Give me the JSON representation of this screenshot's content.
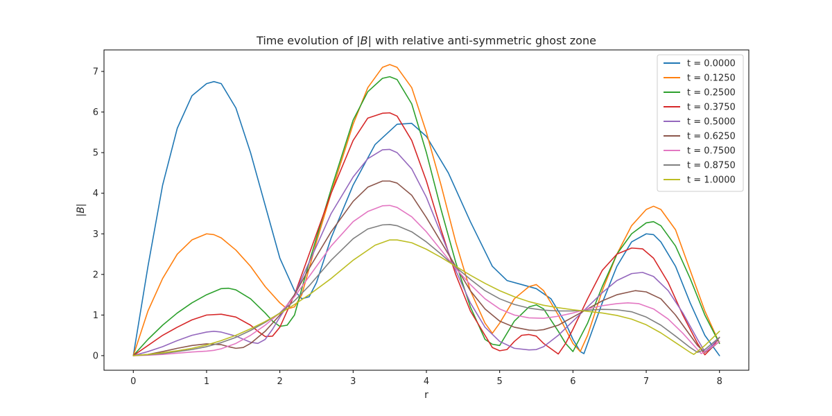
{
  "chart_data": {
    "type": "line",
    "title": "Time evolution of |B| with relative anti-symmetric ghost zone",
    "title_parts": [
      "Time evolution of |",
      "B",
      "| with relative anti-symmetric ghost zone"
    ],
    "xlabel": "r",
    "ylabel_parts": [
      "|",
      "B",
      "|"
    ],
    "xlim": [
      -0.4,
      8.4
    ],
    "ylim": [
      -0.36,
      7.53
    ],
    "x_ticks": [
      0,
      1,
      2,
      3,
      4,
      5,
      6,
      7,
      8
    ],
    "y_ticks": [
      0,
      1,
      2,
      3,
      4,
      5,
      6,
      7
    ],
    "grid": false,
    "legend_position": "top-right",
    "series": [
      {
        "name": "t = 0.0000",
        "color": "#1f77b4",
        "x": [
          0,
          0.2,
          0.4,
          0.6,
          0.8,
          1.0,
          1.1,
          1.2,
          1.4,
          1.6,
          1.8,
          2.0,
          2.2,
          2.3,
          2.4,
          2.5,
          2.7,
          3.0,
          3.3,
          3.6,
          3.8,
          4.0,
          4.3,
          4.6,
          4.9,
          5.1,
          5.3,
          5.5,
          5.7,
          5.9,
          6.0,
          6.1,
          6.15,
          6.2,
          6.4,
          6.6,
          6.8,
          7.0,
          7.1,
          7.2,
          7.4,
          7.6,
          7.8,
          8.0
        ],
        "y": [
          0,
          2.2,
          4.2,
          5.6,
          6.4,
          6.7,
          6.75,
          6.7,
          6.1,
          5.0,
          3.7,
          2.4,
          1.6,
          1.4,
          1.45,
          1.8,
          2.9,
          4.2,
          5.2,
          5.7,
          5.72,
          5.4,
          4.5,
          3.3,
          2.2,
          1.85,
          1.75,
          1.65,
          1.4,
          0.8,
          0.4,
          0.1,
          0.05,
          0.3,
          1.3,
          2.2,
          2.8,
          3.0,
          2.98,
          2.8,
          2.2,
          1.3,
          0.5,
          0
        ]
      },
      {
        "name": "t = 0.1250",
        "color": "#ff7f0e",
        "x": [
          0,
          0.2,
          0.4,
          0.6,
          0.8,
          1.0,
          1.1,
          1.2,
          1.4,
          1.6,
          1.8,
          2.0,
          2.1,
          2.2,
          2.3,
          2.5,
          2.7,
          3.0,
          3.2,
          3.4,
          3.5,
          3.6,
          3.8,
          4.0,
          4.2,
          4.4,
          4.6,
          4.8,
          4.9,
          5.0,
          5.2,
          5.4,
          5.5,
          5.6,
          5.8,
          6.0,
          6.1,
          6.2,
          6.4,
          6.6,
          6.8,
          7.0,
          7.1,
          7.2,
          7.4,
          7.6,
          7.8,
          8.0
        ],
        "y": [
          0,
          1.1,
          1.9,
          2.5,
          2.85,
          3.0,
          2.98,
          2.9,
          2.6,
          2.2,
          1.7,
          1.3,
          1.15,
          1.2,
          1.5,
          2.8,
          4.0,
          5.7,
          6.6,
          7.1,
          7.17,
          7.1,
          6.6,
          5.5,
          4.2,
          2.8,
          1.6,
          0.8,
          0.55,
          0.8,
          1.4,
          1.7,
          1.75,
          1.6,
          1.0,
          0.3,
          0.1,
          0.5,
          1.6,
          2.5,
          3.2,
          3.6,
          3.68,
          3.6,
          3.1,
          2.1,
          1.1,
          0.3
        ]
      },
      {
        "name": "t = 0.2500",
        "color": "#2ca02c",
        "x": [
          0,
          0.2,
          0.4,
          0.6,
          0.8,
          1.0,
          1.2,
          1.3,
          1.4,
          1.6,
          1.8,
          1.9,
          2.0,
          2.1,
          2.2,
          2.4,
          2.7,
          3.0,
          3.2,
          3.4,
          3.5,
          3.6,
          3.8,
          4.0,
          4.2,
          4.4,
          4.6,
          4.8,
          4.9,
          5.0,
          5.2,
          5.4,
          5.5,
          5.6,
          5.8,
          5.9,
          6.0,
          6.2,
          6.4,
          6.6,
          6.8,
          7.0,
          7.1,
          7.2,
          7.4,
          7.6,
          7.8,
          8.0
        ],
        "y": [
          0,
          0.4,
          0.75,
          1.05,
          1.3,
          1.5,
          1.65,
          1.66,
          1.62,
          1.4,
          1.05,
          0.85,
          0.72,
          0.75,
          1.0,
          2.3,
          4.1,
          5.8,
          6.5,
          6.83,
          6.87,
          6.8,
          6.2,
          5.0,
          3.6,
          2.3,
          1.2,
          0.4,
          0.28,
          0.25,
          0.85,
          1.2,
          1.25,
          1.15,
          0.6,
          0.3,
          0.1,
          0.8,
          1.7,
          2.5,
          3.0,
          3.27,
          3.3,
          3.2,
          2.7,
          1.9,
          1.0,
          0.3
        ]
      },
      {
        "name": "t = 0.3750",
        "color": "#d62728",
        "x": [
          0,
          0.2,
          0.4,
          0.6,
          0.8,
          1.0,
          1.2,
          1.4,
          1.6,
          1.7,
          1.8,
          1.9,
          2.0,
          2.2,
          2.4,
          2.7,
          3.0,
          3.2,
          3.4,
          3.5,
          3.6,
          3.8,
          4.0,
          4.2,
          4.4,
          4.6,
          4.8,
          4.9,
          5.0,
          5.1,
          5.2,
          5.3,
          5.4,
          5.5,
          5.6,
          5.8,
          5.9,
          6.0,
          6.2,
          6.4,
          6.6,
          6.8,
          6.95,
          7.1,
          7.3,
          7.5,
          7.7,
          7.8,
          7.9,
          8.0
        ],
        "y": [
          0,
          0.25,
          0.5,
          0.7,
          0.88,
          1.0,
          1.02,
          0.95,
          0.75,
          0.6,
          0.47,
          0.48,
          0.7,
          1.5,
          2.5,
          4.0,
          5.3,
          5.85,
          5.97,
          5.98,
          5.9,
          5.3,
          4.3,
          3.1,
          2.0,
          1.1,
          0.5,
          0.2,
          0.12,
          0.15,
          0.35,
          0.5,
          0.52,
          0.48,
          0.3,
          0.04,
          0.3,
          0.65,
          1.4,
          2.1,
          2.5,
          2.65,
          2.63,
          2.4,
          1.8,
          1.0,
          0.3,
          0.02,
          0.2,
          0.45
        ]
      },
      {
        "name": "t = 0.5000",
        "color": "#9467bd",
        "x": [
          0,
          0.2,
          0.4,
          0.6,
          0.8,
          1.0,
          1.1,
          1.2,
          1.4,
          1.6,
          1.7,
          1.8,
          1.9,
          2.0,
          2.2,
          2.4,
          2.7,
          3.0,
          3.2,
          3.4,
          3.5,
          3.6,
          3.8,
          4.0,
          4.2,
          4.4,
          4.6,
          4.8,
          5.0,
          5.2,
          5.4,
          5.5,
          5.6,
          5.8,
          6.0,
          6.2,
          6.4,
          6.6,
          6.8,
          6.95,
          7.1,
          7.3,
          7.5,
          7.7,
          7.8,
          7.9,
          8.0
        ],
        "y": [
          0,
          0.1,
          0.22,
          0.37,
          0.5,
          0.58,
          0.6,
          0.58,
          0.48,
          0.33,
          0.3,
          0.4,
          0.65,
          0.95,
          1.5,
          2.3,
          3.5,
          4.4,
          4.85,
          5.07,
          5.08,
          5.0,
          4.6,
          3.9,
          3.0,
          2.1,
          1.3,
          0.7,
          0.35,
          0.18,
          0.14,
          0.15,
          0.22,
          0.5,
          0.85,
          1.2,
          1.55,
          1.85,
          2.02,
          2.05,
          1.95,
          1.6,
          1.05,
          0.4,
          0.1,
          0.25,
          0.45
        ]
      },
      {
        "name": "t = 0.6250",
        "color": "#8c564b",
        "x": [
          0,
          0.2,
          0.4,
          0.6,
          0.8,
          1.0,
          1.2,
          1.3,
          1.4,
          1.5,
          1.6,
          1.8,
          2.0,
          2.2,
          2.4,
          2.7,
          3.0,
          3.2,
          3.4,
          3.5,
          3.6,
          3.8,
          4.0,
          4.2,
          4.4,
          4.6,
          4.8,
          5.0,
          5.2,
          5.4,
          5.5,
          5.6,
          5.8,
          6.0,
          6.2,
          6.4,
          6.6,
          6.8,
          6.85,
          7.0,
          7.2,
          7.4,
          7.6,
          7.7,
          7.8,
          7.9,
          8.0
        ],
        "y": [
          0,
          0.03,
          0.1,
          0.18,
          0.25,
          0.29,
          0.27,
          0.22,
          0.18,
          0.2,
          0.3,
          0.6,
          1.0,
          1.5,
          2.15,
          3.05,
          3.8,
          4.15,
          4.3,
          4.3,
          4.25,
          3.95,
          3.4,
          2.8,
          2.2,
          1.6,
          1.15,
          0.85,
          0.7,
          0.63,
          0.62,
          0.64,
          0.75,
          0.95,
          1.15,
          1.35,
          1.5,
          1.58,
          1.6,
          1.57,
          1.4,
          1.0,
          0.5,
          0.25,
          0.08,
          0.2,
          0.35
        ]
      },
      {
        "name": "t = 0.7500",
        "color": "#e377c2",
        "x": [
          0,
          0.2,
          0.4,
          0.6,
          0.8,
          1.0,
          1.1,
          1.2,
          1.4,
          1.6,
          1.8,
          2.0,
          2.2,
          2.4,
          2.7,
          3.0,
          3.2,
          3.4,
          3.5,
          3.6,
          3.8,
          4.0,
          4.2,
          4.4,
          4.6,
          4.8,
          5.0,
          5.2,
          5.4,
          5.6,
          5.8,
          6.0,
          6.2,
          6.4,
          6.6,
          6.75,
          6.9,
          7.1,
          7.3,
          7.5,
          7.7,
          7.75,
          7.85,
          8.0
        ],
        "y": [
          0,
          0.01,
          0.03,
          0.06,
          0.09,
          0.11,
          0.13,
          0.17,
          0.3,
          0.5,
          0.75,
          1.05,
          1.45,
          1.95,
          2.7,
          3.3,
          3.55,
          3.69,
          3.7,
          3.65,
          3.42,
          3.05,
          2.6,
          2.15,
          1.75,
          1.4,
          1.15,
          1.0,
          0.93,
          0.92,
          0.97,
          1.05,
          1.15,
          1.23,
          1.28,
          1.3,
          1.28,
          1.15,
          0.9,
          0.55,
          0.15,
          0.05,
          0.15,
          0.35
        ]
      },
      {
        "name": "t = 0.8750",
        "color": "#7f7f7f",
        "x": [
          0,
          0.2,
          0.4,
          0.6,
          0.8,
          1.0,
          1.2,
          1.4,
          1.6,
          1.8,
          2.0,
          2.2,
          2.4,
          2.7,
          3.0,
          3.2,
          3.4,
          3.5,
          3.6,
          3.8,
          4.0,
          4.2,
          4.4,
          4.6,
          4.8,
          5.0,
          5.2,
          5.4,
          5.6,
          5.8,
          6.0,
          6.2,
          6.4,
          6.6,
          6.8,
          7.0,
          7.2,
          7.4,
          7.6,
          7.7,
          7.8,
          7.9,
          8.0
        ],
        "y": [
          0,
          0.02,
          0.05,
          0.1,
          0.15,
          0.22,
          0.32,
          0.45,
          0.62,
          0.82,
          1.05,
          1.35,
          1.72,
          2.35,
          2.88,
          3.12,
          3.22,
          3.23,
          3.2,
          3.05,
          2.8,
          2.5,
          2.18,
          1.88,
          1.6,
          1.4,
          1.26,
          1.17,
          1.12,
          1.1,
          1.1,
          1.12,
          1.14,
          1.13,
          1.08,
          0.95,
          0.75,
          0.48,
          0.2,
          0.08,
          0.15,
          0.3,
          0.45
        ]
      },
      {
        "name": "t = 1.0000",
        "color": "#bcbd22",
        "x": [
          0,
          0.2,
          0.4,
          0.6,
          0.8,
          1.0,
          1.2,
          1.4,
          1.6,
          1.8,
          2.0,
          2.2,
          2.4,
          2.7,
          3.0,
          3.3,
          3.5,
          3.6,
          3.8,
          4.0,
          4.2,
          4.4,
          4.6,
          4.8,
          5.0,
          5.2,
          5.4,
          5.6,
          5.8,
          6.0,
          6.2,
          6.4,
          6.6,
          6.8,
          7.0,
          7.2,
          7.4,
          7.6,
          7.65,
          7.8,
          8.0
        ],
        "y": [
          0,
          0.03,
          0.07,
          0.12,
          0.18,
          0.26,
          0.37,
          0.5,
          0.66,
          0.84,
          1.04,
          1.26,
          1.5,
          1.9,
          2.35,
          2.72,
          2.85,
          2.85,
          2.78,
          2.62,
          2.42,
          2.2,
          1.98,
          1.78,
          1.6,
          1.45,
          1.33,
          1.24,
          1.18,
          1.13,
          1.09,
          1.05,
          0.99,
          0.9,
          0.76,
          0.56,
          0.32,
          0.08,
          0.03,
          0.25,
          0.6
        ]
      }
    ]
  }
}
